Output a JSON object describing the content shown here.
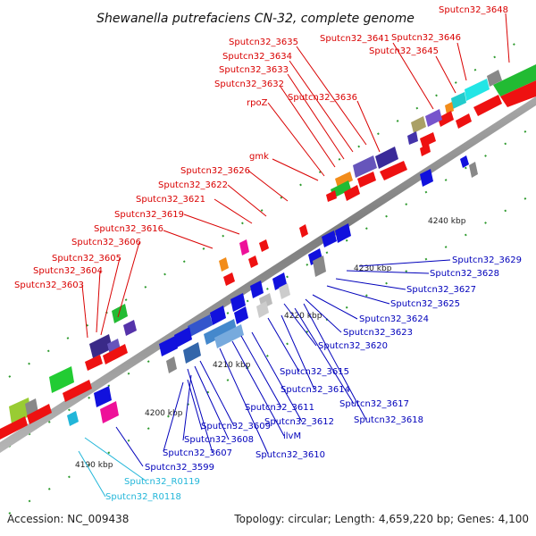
{
  "title": "Shewanella putrefaciens CN-32, complete genome",
  "footer": {
    "accession": "Accession: NC_009438",
    "summary": "Topology: circular; Length: 4,659,220 bp; Genes: 4,100"
  },
  "colors": {
    "top_label": "#d90000",
    "bottom_label": "#0000bb",
    "rna_label": "#22b6d9",
    "gene_forward": "#ee1111",
    "gene_reverse": "#1111dd",
    "backbone": "#999999",
    "tick": "#2e9a2e"
  },
  "kbp_ticks": [
    "4190 kbp",
    "4200 kbp",
    "4210 kbp",
    "4220 kbp",
    "4230 kbp",
    "4240 kbp"
  ],
  "top_labels": [
    "Sputcn32_3648",
    "Sputcn32_3646",
    "Sputcn32_3645",
    "Sputcn32_3641",
    "Sputcn32_3635",
    "Sputcn32_3634",
    "Sputcn32_3633",
    "Sputcn32_3632",
    "Sputcn32_3636",
    "rpoZ",
    "gmk",
    "Sputcn32_3626",
    "Sputcn32_3622",
    "Sputcn32_3621",
    "Sputcn32_3619",
    "Sputcn32_3616",
    "Sputcn32_3606",
    "Sputcn32_3605",
    "Sputcn32_3604",
    "Sputcn32_3603"
  ],
  "bottom_labels": [
    "Sputcn32_3629",
    "Sputcn32_3628",
    "Sputcn32_3627",
    "Sputcn32_3625",
    "Sputcn32_3624",
    "Sputcn32_3623",
    "Sputcn32_3620",
    "Sputcn32_3615",
    "Sputcn32_3614",
    "Sputcn32_3617",
    "Sputcn32_3618",
    "Sputcn32_3611",
    "Sputcn32_3612",
    "Sputcn32_3609",
    "Sputcn32_3608",
    "ilvM",
    "Sputcn32_3607",
    "Sputcn32_3610",
    "Sputcn32_3599"
  ],
  "rna_labels": [
    "Sputcn32_R0119",
    "Sputcn32_R0118"
  ]
}
